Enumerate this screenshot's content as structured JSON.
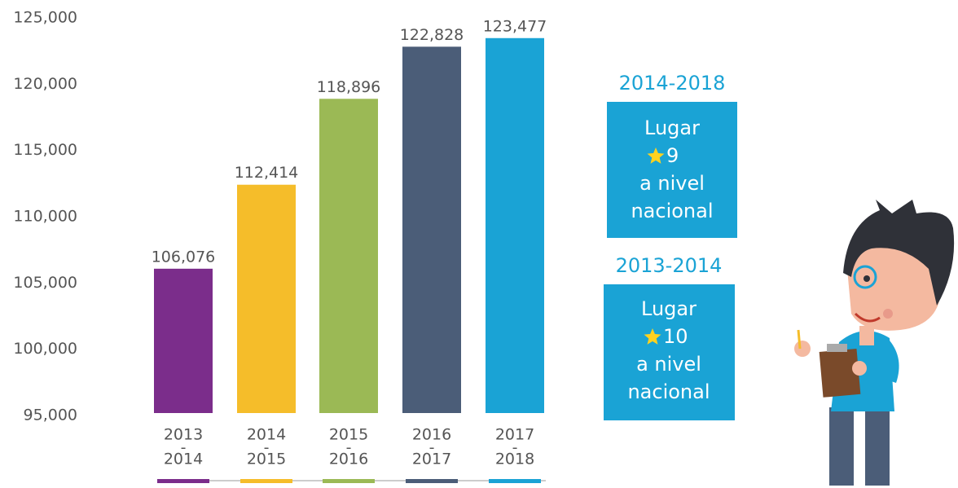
{
  "chart_data": {
    "type": "bar",
    "categories": [
      [
        "2013",
        "-",
        "2014"
      ],
      [
        "2014",
        "-",
        "2015"
      ],
      [
        "2015",
        "-",
        "2016"
      ],
      [
        "2016",
        "-",
        "2017"
      ],
      [
        "2017",
        "-",
        "2018"
      ]
    ],
    "values": [
      106076,
      112414,
      118896,
      122828,
      123477
    ],
    "value_labels": [
      "106,076",
      "112,414",
      "118,896",
      "122,828",
      "123,477"
    ],
    "colors": [
      "#7b2d8b",
      "#f5bd2a",
      "#9bb955",
      "#4b5d78",
      "#1aa3d5"
    ],
    "ylim": [
      95000,
      125000
    ],
    "yticks": [
      {
        "value": 95000,
        "label": "95,000"
      },
      {
        "value": 100000,
        "label": "100,000"
      },
      {
        "value": 105000,
        "label": "105,000"
      },
      {
        "value": 110000,
        "label": "110,000"
      },
      {
        "value": 115000,
        "label": "115,000"
      },
      {
        "value": 120000,
        "label": "120,000"
      },
      {
        "value": 125000,
        "label": "125,000"
      }
    ],
    "grid": false,
    "rankings": [
      {
        "period": "2014-2018",
        "lines": [
          "Lugar",
          "9",
          "a nivel",
          "nacional"
        ]
      },
      {
        "period": "2013-2014",
        "lines": [
          "Lugar",
          "10",
          "a nivel",
          "nacional"
        ]
      }
    ]
  }
}
